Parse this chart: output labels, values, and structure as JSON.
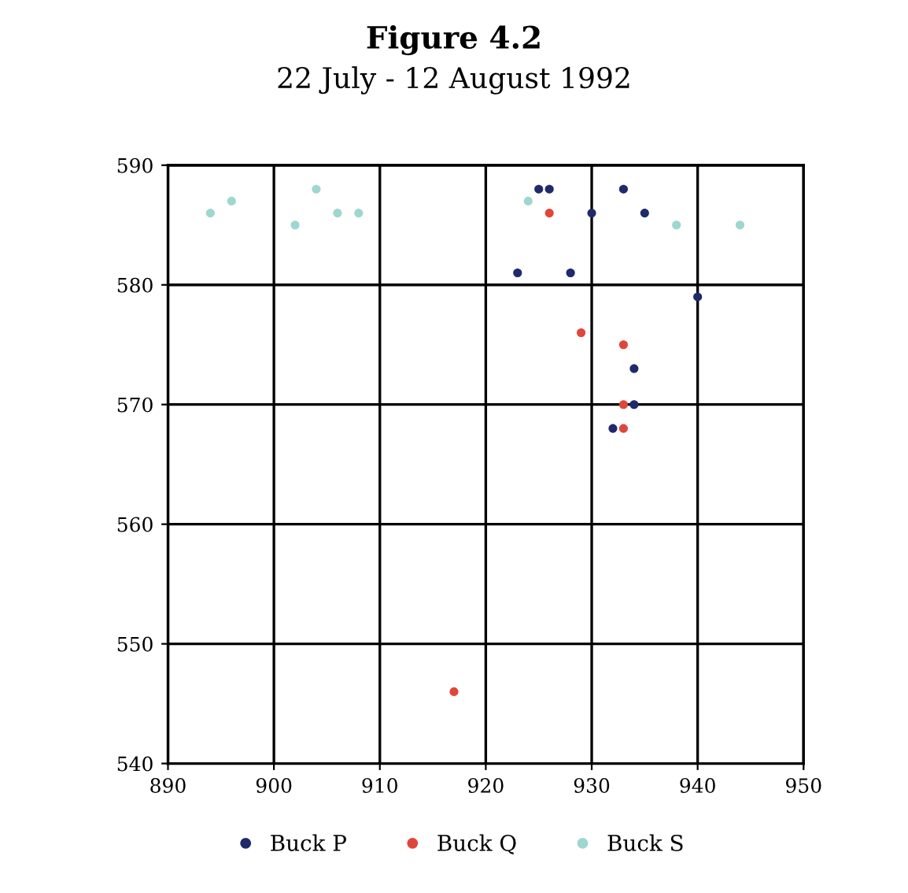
{
  "chart_data": {
    "type": "scatter",
    "title": "Figure 4.2",
    "subtitle": "22 July - 12 August 1992",
    "series": [
      {
        "name": "Buck P",
        "color": "#1f2a6b",
        "x": [
          923,
          925,
          926,
          928,
          930,
          933,
          935,
          940,
          934,
          934,
          932
        ],
        "values": [
          581,
          588,
          588,
          581,
          586,
          588,
          586,
          579,
          573,
          570,
          568
        ]
      },
      {
        "name": "Buck Q",
        "color": "#e0463a",
        "x": [
          926,
          929,
          933,
          933,
          933,
          917
        ],
        "values": [
          586,
          576,
          575,
          570,
          568,
          546
        ]
      },
      {
        "name": "Buck S",
        "color": "#9fd6d0",
        "x": [
          894,
          896,
          902,
          904,
          906,
          908,
          924,
          938,
          944
        ],
        "values": [
          586,
          587,
          585,
          588,
          586,
          586,
          587,
          585,
          585
        ]
      }
    ],
    "xlim": [
      890,
      950
    ],
    "xticks": [
      890,
      900,
      910,
      920,
      930,
      940,
      950
    ],
    "ylim": [
      540,
      590
    ],
    "yticks": [
      540,
      550,
      560,
      570,
      580,
      590
    ],
    "grid": true,
    "legend": "bottom",
    "marker": "circle"
  }
}
